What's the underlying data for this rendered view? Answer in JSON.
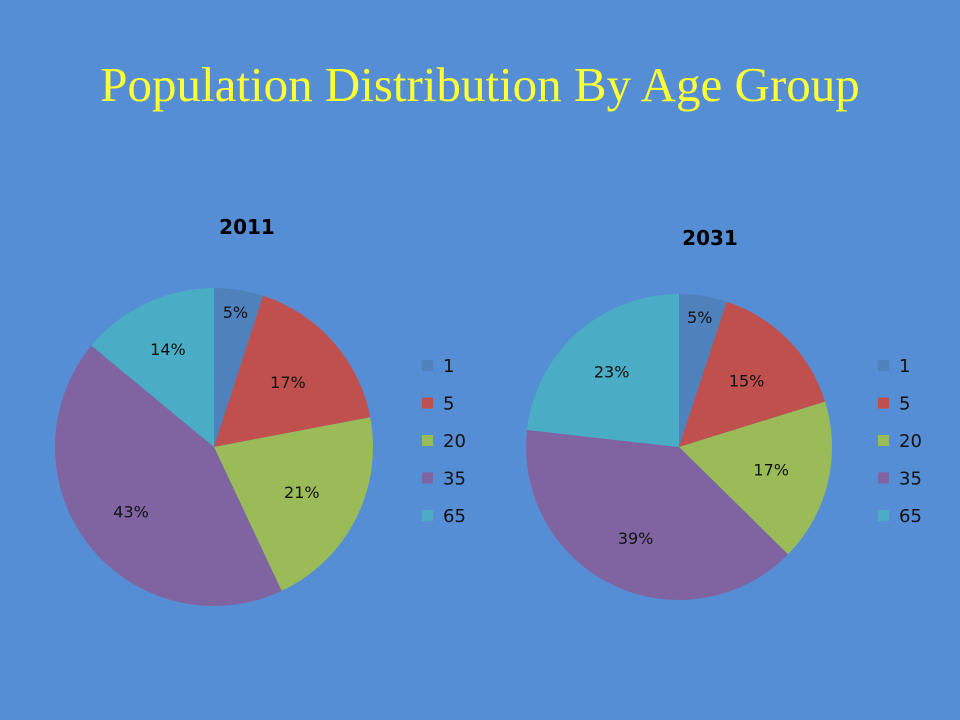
{
  "slide": {
    "title": "Population Distribution By Age Group"
  },
  "colors": {
    "background": "#558ED5",
    "title": "#FFFF33",
    "series": [
      "#4F81BD",
      "#C0504D",
      "#9BBB59",
      "#8064A2",
      "#4BACC6"
    ]
  },
  "chart_data": [
    {
      "type": "pie",
      "title": "2011",
      "categories": [
        "1",
        "5",
        "20",
        "35",
        "65"
      ],
      "values": [
        5,
        17,
        21,
        43,
        14
      ],
      "labels": [
        "5%",
        "17%",
        "21%",
        "43%",
        "14%"
      ],
      "legend": "right"
    },
    {
      "type": "pie",
      "title": "2031",
      "categories": [
        "1",
        "5",
        "20",
        "35",
        "65"
      ],
      "values": [
        5,
        15,
        17,
        39,
        23
      ],
      "labels": [
        "5%",
        "15%",
        "17%",
        "39%",
        "23%"
      ],
      "legend": "right"
    }
  ]
}
